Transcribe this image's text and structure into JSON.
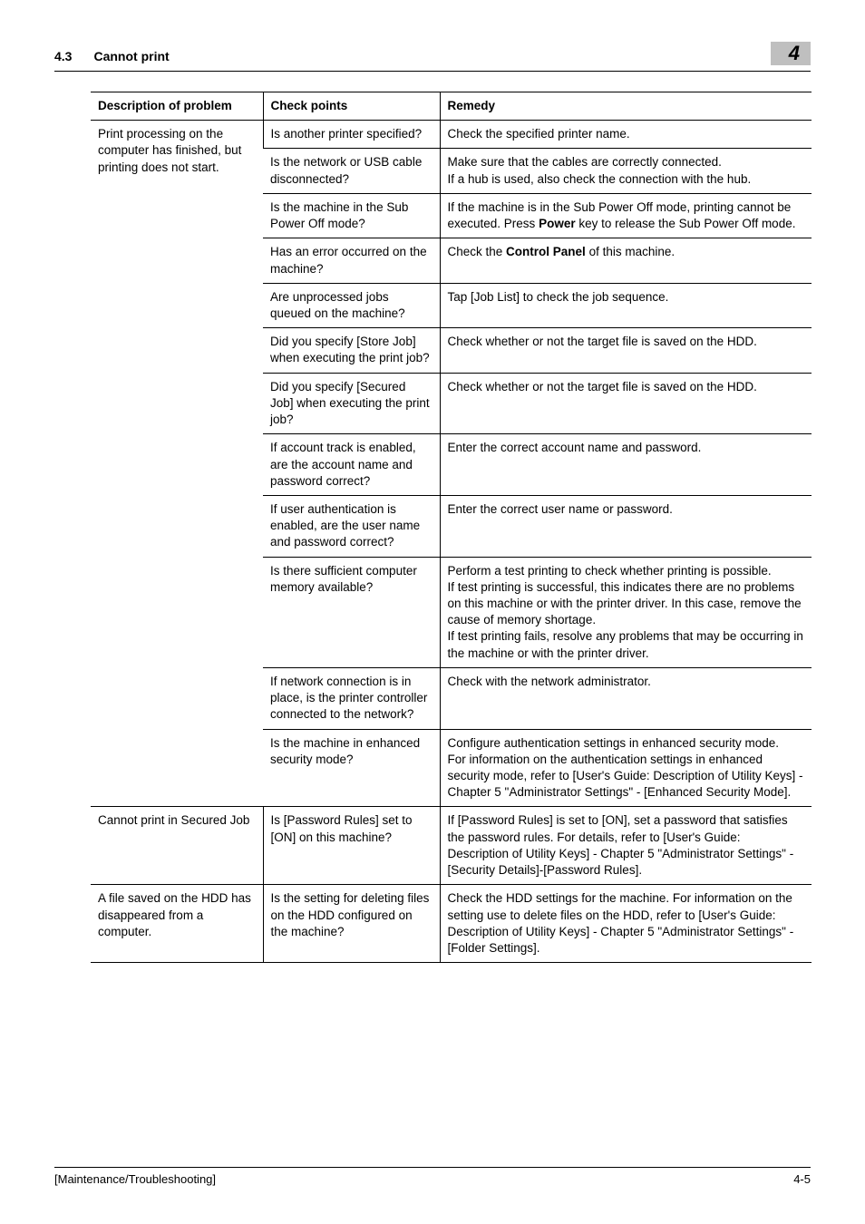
{
  "header": {
    "section_number": "4.3",
    "section_title": "Cannot print",
    "chapter_number": "4"
  },
  "table": {
    "columns": {
      "col1": "Description of problem",
      "col2": "Check points",
      "col3": "Remedy"
    },
    "groups": [
      {
        "description": "Print processing on the computer has finished, but printing does not start.",
        "rows": [
          {
            "check": "Is another printer specified?",
            "remedy": "Check the specified printer name."
          },
          {
            "check": "Is the network or USB cable disconnected?",
            "remedy": "Make sure that the cables are correctly connected.\nIf a hub is used, also check the connection with the hub."
          },
          {
            "check": "Is the machine in the Sub Power Off mode?",
            "remedy": "If the machine is in the Sub Power Off mode, printing cannot be executed. Press <b>Power</b> key to release the Sub Power Off mode."
          },
          {
            "check": "Has an error occurred on the machine?",
            "remedy": "Check the <b>Control Panel</b> of this machine."
          },
          {
            "check": "Are unprocessed jobs queued on the machine?",
            "remedy": "Tap [Job List] to check the job sequence."
          },
          {
            "check": "Did you specify [Store Job] when executing the print job?",
            "remedy": "Check whether or not the target file is saved on the HDD."
          },
          {
            "check": "Did you specify [Secured Job] when executing the print job?",
            "remedy": "Check whether or not the target file is saved on the HDD."
          },
          {
            "check": "If account track is enabled, are the account name and password correct?",
            "remedy": "Enter the correct account name and password."
          },
          {
            "check": "If user authentication is enabled, are the user name and password correct?",
            "remedy": "Enter the correct user name or password."
          },
          {
            "check": "Is there sufficient computer memory available?",
            "remedy": "Perform a test printing to check whether printing is possible.\nIf test printing is successful, this indicates there are no problems on this machine or with the printer driver. In this case, remove the cause of memory shortage.\nIf test printing fails, resolve any problems that may be occurring in the machine or with the printer driver."
          },
          {
            "check": "If network connection is in place, is the printer controller connected to the network?",
            "remedy": "Check with the network administrator."
          },
          {
            "check": "Is the machine in enhanced security mode?",
            "remedy": "Configure authentication settings in enhanced security mode.\nFor information on the authentication settings in enhanced security mode, refer to [User's Guide: Description of Utility Keys] - Chapter 5 \"Administrator Settings\" - [Enhanced Security Mode]."
          }
        ]
      },
      {
        "description": "Cannot print in Secured Job",
        "rows": [
          {
            "check": "Is [Password Rules] set to [ON] on this machine?",
            "remedy": "If [Password Rules] is set to [ON], set a password that satisfies the password rules. For details, refer to [User's Guide: Description of Utility Keys] - Chapter 5 \"Administrator Settings\" - [Security Details]-[Password Rules]."
          }
        ]
      },
      {
        "description": "A file saved on the HDD has disappeared from a computer.",
        "rows": [
          {
            "check": "Is the setting for deleting files on the HDD configured on the machine?",
            "remedy": "Check the HDD settings for the machine. For information on the setting use to delete files on the HDD, refer to [User's Guide: Description of Utility Keys] - Chapter 5 \"Administrator Settings\" - [Folder Settings]."
          }
        ]
      }
    ]
  },
  "footer": {
    "doc_title": "[Maintenance/Troubleshooting]",
    "page_number": "4-5"
  },
  "colors": {
    "tab_bg": "#bfbfbf",
    "text": "#000000",
    "background": "#ffffff"
  }
}
